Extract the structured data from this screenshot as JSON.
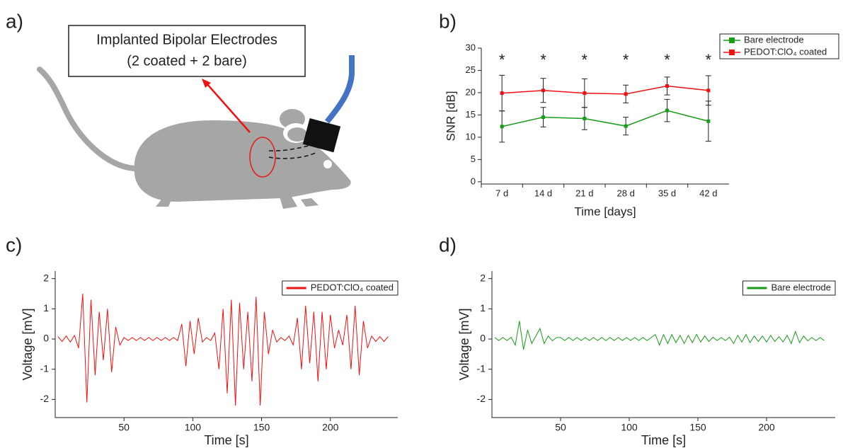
{
  "panel_labels": [
    "a)",
    "b)",
    "c)",
    "d)"
  ],
  "illustration": {
    "callout": [
      "Implanted Bipolar Electrodes",
      "(2 coated + 2 bare)"
    ]
  },
  "chart_data": [
    {
      "type": "line",
      "xlabel": "Time [days]",
      "ylabel": "SNR [dB]",
      "categories": [
        "7 d",
        "14 d",
        "21 d",
        "28 d",
        "35 d",
        "42 d"
      ],
      "annotations": [
        "*",
        "*",
        "*",
        "*",
        "*",
        "*"
      ],
      "ylim": [
        -0.5,
        30
      ],
      "yticks": [
        0,
        5,
        10,
        15,
        20,
        25,
        30
      ],
      "legend": "outside upper right",
      "series": [
        {
          "name": "Bare electrode",
          "color": "#1a9a1a",
          "values": [
            12.4,
            14.5,
            14.2,
            12.5,
            16,
            13.6
          ],
          "errors": [
            3.5,
            2.2,
            2.5,
            2,
            2.5,
            4.5
          ]
        },
        {
          "name": "PEDOT:ClO₄ coated",
          "color": "#ee1111",
          "values": [
            19.9,
            20.5,
            19.9,
            19.7,
            21.5,
            20.5
          ],
          "errors": [
            4,
            2.7,
            3.2,
            2,
            2,
            3.3
          ]
        }
      ]
    },
    {
      "type": "trace",
      "xlabel": "Time [s]",
      "ylabel": "Voltage [mV]",
      "xlim": [
        0,
        249
      ],
      "xticks": [
        50,
        100,
        150,
        200
      ],
      "ylim": [
        -2.6,
        2.25
      ],
      "yticks": [
        -2,
        -1,
        0,
        1,
        2
      ],
      "legend": "upper right",
      "x": [
        2,
        5,
        8,
        11,
        14,
        17,
        20,
        23,
        26,
        29,
        32,
        35,
        38,
        41,
        44,
        47,
        50,
        53,
        56,
        59,
        62,
        65,
        68,
        71,
        74,
        77,
        80,
        83,
        86,
        89,
        92,
        95,
        98,
        101,
        104,
        107,
        110,
        113,
        116,
        119,
        122,
        125,
        128,
        131,
        134,
        137,
        140,
        143,
        146,
        149,
        152,
        155,
        158,
        161,
        164,
        167,
        170,
        173,
        176,
        179,
        182,
        185,
        188,
        191,
        194,
        197,
        200,
        203,
        206,
        209,
        212,
        215,
        218,
        221,
        224,
        227,
        230,
        233,
        236,
        239,
        242
      ],
      "series": [
        {
          "name": "PEDOT:ClO₄ coated",
          "color": "#ee1111",
          "values": [
            0.08,
            -0.08,
            0.1,
            -0.1,
            0.12,
            -0.3,
            1.5,
            -2.1,
            1.3,
            -1.2,
            0.9,
            -0.7,
            1.0,
            -1.1,
            0.4,
            -0.2,
            0.05,
            -0.05,
            0.05,
            -0.05,
            0.05,
            -0.05,
            0.05,
            -0.05,
            0.05,
            -0.05,
            0.05,
            -0.05,
            0.05,
            -0.05,
            0.5,
            -0.9,
            0.6,
            -0.5,
            0.7,
            -0.1,
            0.05,
            -0.05,
            0.2,
            -1.0,
            1.0,
            -1.8,
            1.3,
            -2.2,
            1.2,
            -1.0,
            0.9,
            -1.4,
            1.4,
            -2.2,
            0.9,
            -0.5,
            0.3,
            -0.1,
            0.05,
            -0.05,
            0.1,
            -0.2,
            0.7,
            -1.0,
            1.1,
            -0.8,
            0.9,
            -1.4,
            0.9,
            -1.0,
            0.8,
            -0.3,
            0.3,
            -0.2,
            0.8,
            -1.0,
            1.1,
            -1.2,
            0.6,
            -0.3,
            0.1,
            -0.08,
            0.08,
            -0.08,
            0.08
          ]
        }
      ]
    },
    {
      "type": "trace",
      "xlabel": "Time [s]",
      "ylabel": "Voltage [mV]",
      "xlim": [
        0,
        250
      ],
      "xticks": [
        50,
        100,
        150,
        200
      ],
      "ylim": [
        -2.6,
        2.25
      ],
      "yticks": [
        -2,
        -1,
        0,
        1,
        2
      ],
      "legend": "upper right",
      "x": [
        2,
        5,
        8,
        11,
        14,
        17,
        20,
        23,
        26,
        29,
        32,
        35,
        38,
        41,
        44,
        47,
        50,
        53,
        56,
        59,
        62,
        65,
        68,
        71,
        74,
        77,
        80,
        83,
        86,
        89,
        92,
        95,
        98,
        101,
        104,
        107,
        110,
        113,
        116,
        119,
        122,
        125,
        128,
        131,
        134,
        137,
        140,
        143,
        146,
        149,
        152,
        155,
        158,
        161,
        164,
        167,
        170,
        173,
        176,
        179,
        182,
        185,
        188,
        191,
        194,
        197,
        200,
        203,
        206,
        209,
        212,
        215,
        218,
        221,
        224,
        227,
        230,
        233,
        236,
        239,
        242
      ],
      "series": [
        {
          "name": "Bare electrode",
          "color": "#1a9a1a",
          "values": [
            0.05,
            -0.05,
            0.05,
            -0.05,
            0.06,
            -0.2,
            0.6,
            -0.35,
            0.3,
            -0.15,
            0.1,
            0.35,
            -0.15,
            0.1,
            -0.06,
            0.05,
            0.05,
            -0.05,
            0.05,
            -0.05,
            0.05,
            -0.05,
            0.05,
            -0.05,
            0.05,
            -0.05,
            0.05,
            -0.05,
            0.05,
            -0.05,
            0.05,
            -0.05,
            0.05,
            -0.05,
            0.05,
            -0.05,
            0.05,
            -0.05,
            0.05,
            0.15,
            -0.2,
            0.15,
            -0.15,
            0.15,
            -0.12,
            0.12,
            -0.15,
            0.12,
            -0.12,
            0.15,
            -0.1,
            0.1,
            -0.08,
            0.06,
            -0.05,
            0.05,
            -0.05,
            0.06,
            -0.15,
            0.12,
            -0.1,
            0.15,
            -0.12,
            0.1,
            -0.08,
            0.1,
            -0.1,
            0.12,
            -0.08,
            0.08,
            -0.1,
            0.12,
            -0.15,
            0.25,
            -0.12,
            0.1,
            -0.06,
            0.05,
            -0.05,
            0.05,
            -0.05
          ]
        }
      ]
    }
  ]
}
